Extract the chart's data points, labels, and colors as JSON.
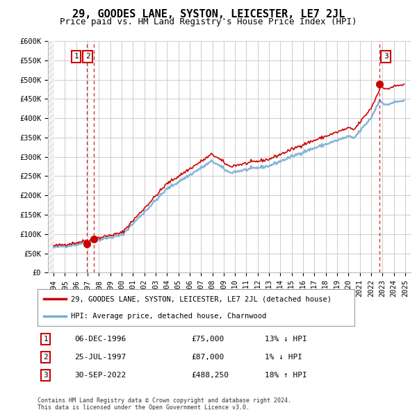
{
  "title": "29, GOODES LANE, SYSTON, LEICESTER, LE7 2JL",
  "subtitle": "Price paid vs. HM Land Registry's House Price Index (HPI)",
  "ylim": [
    0,
    600000
  ],
  "yticks": [
    0,
    50000,
    100000,
    150000,
    200000,
    250000,
    300000,
    350000,
    400000,
    450000,
    500000,
    550000,
    600000
  ],
  "ytick_labels": [
    "£0",
    "£50K",
    "£100K",
    "£150K",
    "£200K",
    "£250K",
    "£300K",
    "£350K",
    "£400K",
    "£450K",
    "£500K",
    "£550K",
    "£600K"
  ],
  "xlim_start": 1993.5,
  "xlim_end": 2025.5,
  "sale_dates_decimal": [
    1996.92,
    1997.56,
    2022.75
  ],
  "sale_prices": [
    75000,
    87000,
    488250
  ],
  "sale_labels": [
    "1",
    "2",
    "3"
  ],
  "sale_date_strings": [
    "06-DEC-1996",
    "25-JUL-1997",
    "30-SEP-2022"
  ],
  "sale_price_strings": [
    "£75,000",
    "£87,000",
    "£488,250"
  ],
  "sale_hpi_strings": [
    "13% ↓ HPI",
    "1% ↓ HPI",
    "18% ↑ HPI"
  ],
  "line_color_red": "#cc0000",
  "line_color_blue": "#7aadd4",
  "grid_color": "#cccccc",
  "background_color": "#ffffff",
  "legend_label_red": "29, GOODES LANE, SYSTON, LEICESTER, LE7 2JL (detached house)",
  "legend_label_blue": "HPI: Average price, detached house, Charnwood",
  "footnote1": "Contains HM Land Registry data © Crown copyright and database right 2024.",
  "footnote2": "This data is licensed under the Open Government Licence v3.0.",
  "title_fontsize": 11,
  "subtitle_fontsize": 9,
  "tick_fontsize": 7.5,
  "legend_fontsize": 7.5,
  "table_fontsize": 8
}
